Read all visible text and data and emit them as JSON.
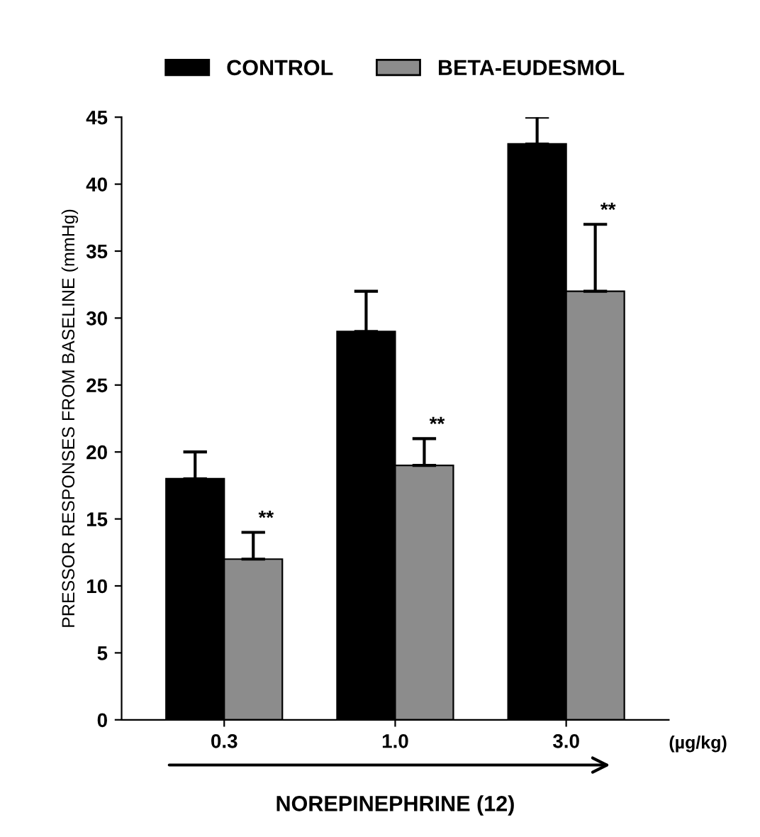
{
  "chart_data": {
    "type": "bar",
    "ylabel": "PRESSOR RESPONSES FROM BASELINE (mmHg)",
    "xlabel": "NOREPINEPHRINE (12)",
    "categories": [
      "0.3",
      "1.0",
      "3.0"
    ],
    "series": [
      {
        "name": "CONTROL",
        "color": "#000000",
        "values": [
          18,
          29,
          43
        ],
        "errors": [
          [
            18,
            20
          ],
          [
            29,
            32
          ],
          [
            43,
            45
          ]
        ]
      },
      {
        "name": "BETA-EUDESMOL",
        "color": "#8c8c8c",
        "values": [
          12,
          19,
          32
        ],
        "errors": [
          [
            12,
            14
          ],
          [
            19,
            21
          ],
          [
            32,
            37
          ]
        ]
      }
    ],
    "annotations": [
      {
        "text": "**",
        "x": "0.3",
        "y": 14
      },
      {
        "text": "**",
        "x": "1.0",
        "y": 21
      },
      {
        "text": "**",
        "x": "3.0",
        "y": 37
      },
      "(µg/kg)"
    ],
    "ylim": [
      0,
      45
    ],
    "yticks": [
      0,
      5,
      10,
      15,
      20,
      25,
      30,
      35,
      40,
      45
    ],
    "grid": false,
    "legend": "top"
  }
}
